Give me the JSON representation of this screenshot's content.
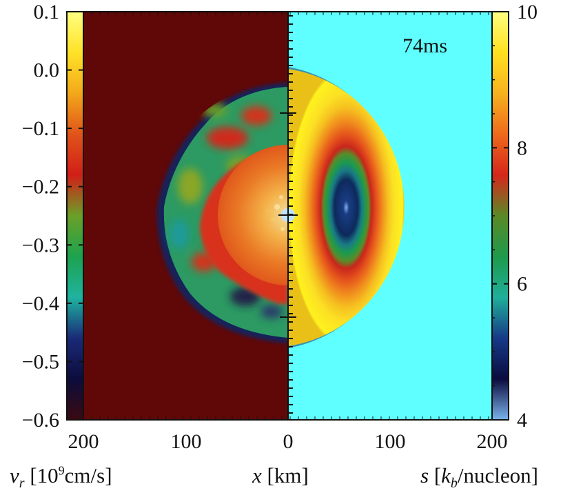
{
  "figure": {
    "time_label": "74ms",
    "left_colorbar": {
      "variable_symbol": "v",
      "variable_subscript": "r",
      "unit_open": " [10",
      "unit_exp": "9",
      "unit_rest": "cm/s]",
      "min": -0.6,
      "max": 0.1,
      "ticks": [
        "0.1",
        "0.0",
        "−0.1",
        "−0.2",
        "−0.3",
        "−0.4",
        "−0.5",
        "−0.6"
      ],
      "stops": [
        "#3a0a10",
        "#0c0c3c",
        "#1a2a78",
        "#1fb3a0",
        "#1ea24e",
        "#6aa028",
        "#d21e18",
        "#e0541a",
        "#f3a81a",
        "#ffe228",
        "#ffff80"
      ]
    },
    "right_colorbar": {
      "variable_symbol": "s",
      "unit_open": " [",
      "unit_k": "k",
      "unit_sub": "b",
      "unit_rest": "/nucleon]",
      "min": 4,
      "max": 10,
      "ticks": [
        "10",
        "8",
        "6",
        "4"
      ],
      "stops": [
        "#ffff80",
        "#ffe020",
        "#f6b21e",
        "#ee6a1c",
        "#d6261c",
        "#5a8a26",
        "#1e9a4c",
        "#1faf9a",
        "#163a88",
        "#0b0b3e",
        "#7ab4ec"
      ]
    },
    "x_axis": {
      "variable_symbol": "x",
      "unit": " [km]",
      "ticks": [
        "200",
        "100",
        "0",
        "100",
        "200"
      ]
    },
    "panels": {
      "left_background": "#600808",
      "right_background": "#60ffff"
    }
  }
}
